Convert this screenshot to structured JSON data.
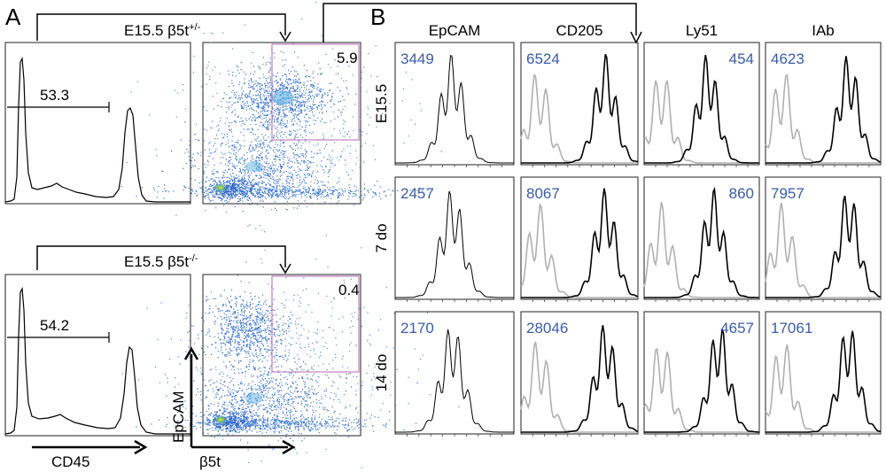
{
  "panel_a": {
    "letter": "A",
    "top": {
      "condition_base": "E15.5 β5t",
      "condition_sup": "+/-",
      "gate_histogram_value": "53.3",
      "gate_dotplot_value": "5.9"
    },
    "bottom": {
      "condition_base": "E15.5 β5t",
      "condition_sup": "-/-",
      "gate_histogram_value": "54.2",
      "gate_dotplot_value": "0.4"
    },
    "x_axis_histogram": "CD45",
    "x_axis_dotplot": "β5t",
    "y_axis_dotplot": "EpCAM"
  },
  "panel_b": {
    "letter": "B",
    "columns": [
      "EpCAM",
      "CD205",
      "Ly51",
      "IAb"
    ],
    "rows": [
      {
        "label": "E15.5",
        "values": [
          "3449",
          "6524",
          "454",
          "4623"
        ]
      },
      {
        "label": "7 do",
        "values": [
          "2457",
          "8067",
          "860",
          "7957"
        ]
      },
      {
        "label": "14 do",
        "values": [
          "2170",
          "28046",
          "4657",
          "17061"
        ]
      }
    ]
  },
  "colors": {
    "mfi_text": "#3a5ca8",
    "gate_box": "#c080c0",
    "histogram_sample": "#000000",
    "histogram_control": "#b0b0b0"
  }
}
